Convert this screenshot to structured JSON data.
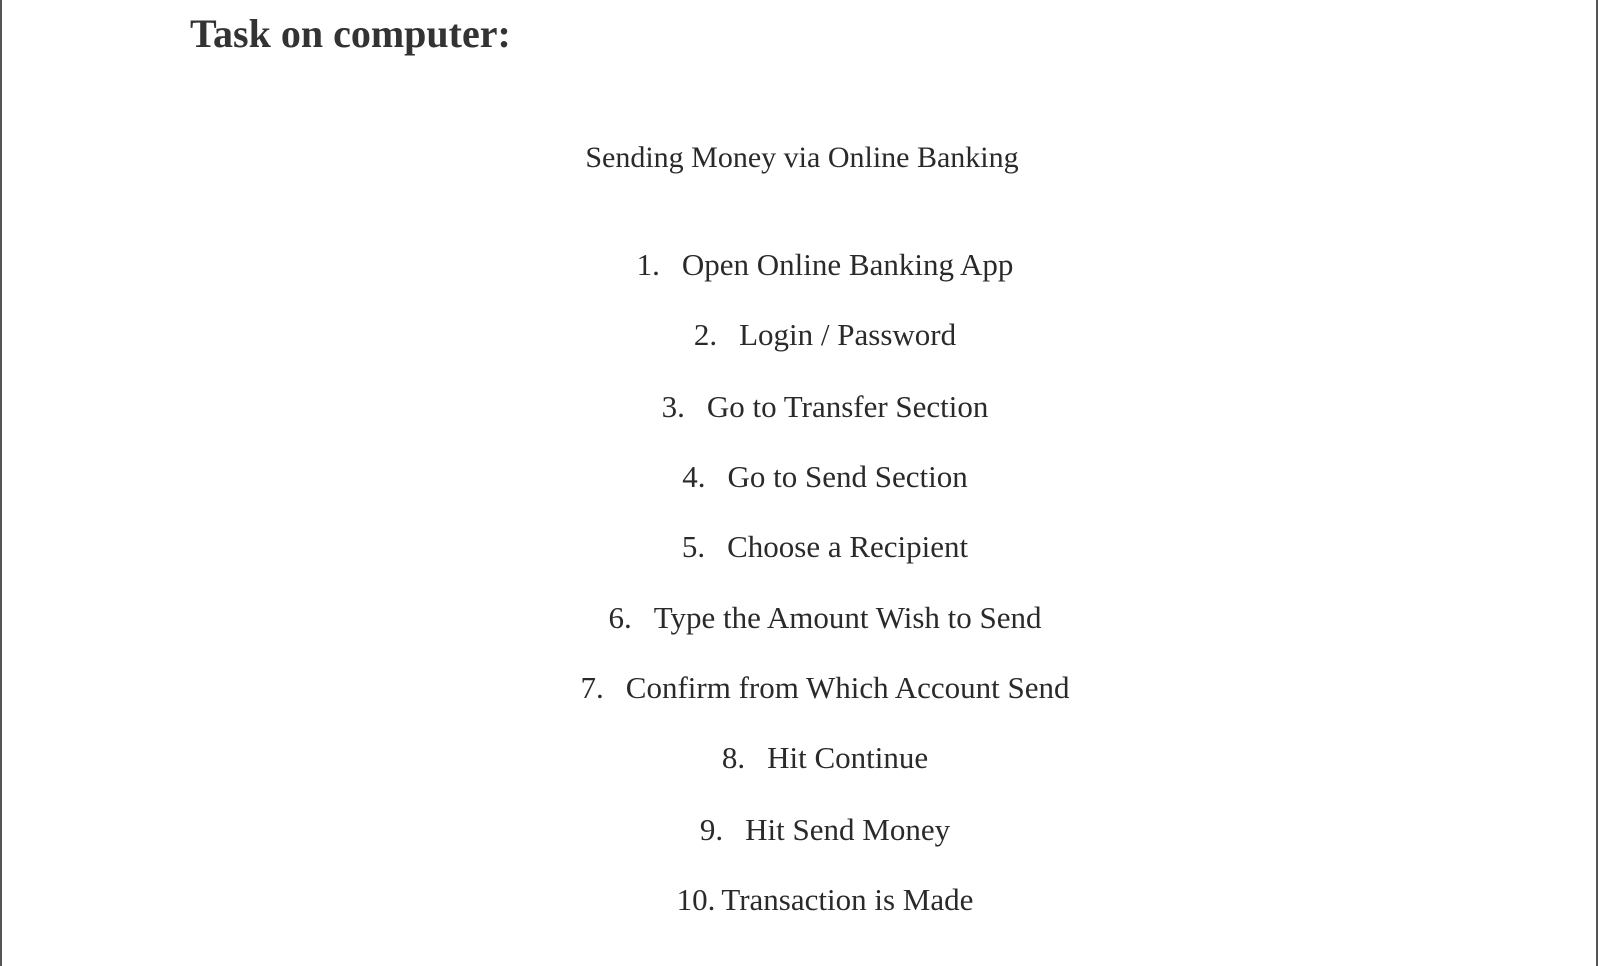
{
  "heading": "Task on computer:",
  "document": {
    "title": "Sending Money via Online Banking",
    "steps": [
      {
        "number": "1.",
        "text": "Open Online Banking App"
      },
      {
        "number": "2.",
        "text": "Login / Password"
      },
      {
        "number": "3.",
        "text": "Go to Transfer Section"
      },
      {
        "number": "4.",
        "text": "Go to Send Section"
      },
      {
        "number": "5.",
        "text": "Choose a Recipient"
      },
      {
        "number": "6.",
        "text": "Type the Amount Wish to Send"
      },
      {
        "number": "7.",
        "text": "Confirm from Which Account Send"
      },
      {
        "number": "8.",
        "text": "Hit Continue"
      },
      {
        "number": "9.",
        "text": "Hit Send Money"
      },
      {
        "number": "10.",
        "text": "Transaction is Made"
      }
    ]
  }
}
